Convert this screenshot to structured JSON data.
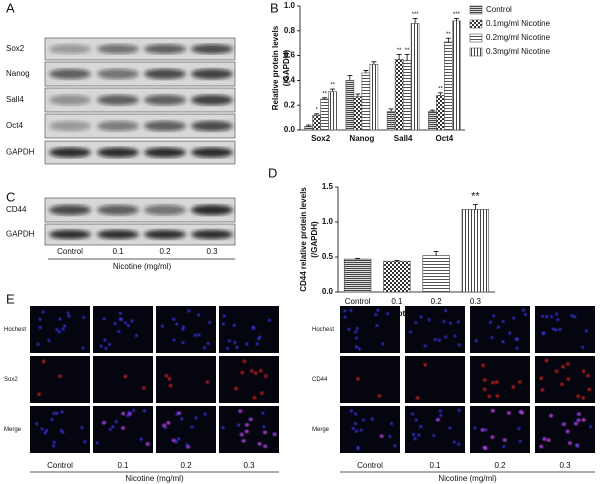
{
  "panel_labels": [
    "A",
    "B",
    "C",
    "D",
    "E"
  ],
  "blot_a": {
    "rows": [
      "Sox2",
      "Nanog",
      "Sall4",
      "Oct4",
      "GAPDH"
    ]
  },
  "blot_c": {
    "rows": [
      "CD44",
      "GAPDH"
    ],
    "lanes": [
      "Control",
      "0.1",
      "0.2",
      "0.3"
    ],
    "xlabel": "Nicotine (mg/ml)"
  },
  "chart_data": [
    {
      "type": "bar",
      "ylabel": [
        "Relative protein levels",
        "(/GAPDH)"
      ],
      "categories": [
        "Sox2",
        "Nanog",
        "Sall4",
        "Oct4"
      ],
      "series": [
        {
          "name": "Control",
          "color": "#555555",
          "pattern": "hlines",
          "values": [
            0.03,
            0.4,
            0.15,
            0.15
          ],
          "errors": [
            0.01,
            0.04,
            0.02,
            0.01
          ],
          "annotations": [
            null,
            null,
            null,
            null
          ]
        },
        {
          "name": "0.1mg/ml Nicotine",
          "color": "#555555",
          "pattern": "checker",
          "values": [
            0.12,
            0.27,
            0.57,
            0.28
          ],
          "errors": [
            0.01,
            0.02,
            0.04,
            0.02
          ],
          "annotations": [
            "*",
            null,
            "**",
            "**"
          ]
        },
        {
          "name": "0.2mg/ml Nicotine",
          "color": "#555555",
          "pattern": "hlines-light",
          "values": [
            0.25,
            0.46,
            0.56,
            0.71
          ],
          "errors": [
            0.01,
            0.02,
            0.05,
            0.03
          ],
          "annotations": [
            "**",
            null,
            "**",
            "**"
          ]
        },
        {
          "name": "0.3mg/ml Nicotine",
          "color": "#555555",
          "pattern": "vlines",
          "values": [
            0.31,
            0.53,
            0.86,
            0.88
          ],
          "errors": [
            0.02,
            0.02,
            0.04,
            0.02
          ],
          "annotations": [
            "**",
            null,
            "***",
            "***"
          ]
        }
      ],
      "ylim": [
        0,
        1.0
      ],
      "yticks": [
        {
          "value": 0,
          "label": "0.0"
        },
        0.2,
        0.4,
        0.6,
        0.8,
        {
          "value": 1.0,
          "label": "1.0"
        }
      ],
      "legend": "right"
    },
    {
      "type": "bar",
      "ylabel": [
        "CD44 relative protein levels",
        "(/GAPDH)"
      ],
      "xlabel": "Nicotine (mg/ml)",
      "categories": [
        "Control",
        "0.1",
        "0.2",
        "0.3"
      ],
      "values": [
        0.47,
        0.44,
        0.52,
        1.18
      ],
      "errors": [
        0.01,
        0.01,
        0.06,
        0.07
      ],
      "annotations": [
        null,
        null,
        null,
        "**"
      ],
      "patterns": [
        "hlines",
        "checker",
        "hlines-light",
        "vlines"
      ],
      "color": "#555555",
      "ylim": [
        0,
        1.5
      ],
      "yticks": [
        {
          "value": 0,
          "label": "0.0"
        },
        0.5,
        {
          "value": 1.0,
          "label": "1.0"
        },
        1.5
      ]
    }
  ],
  "images_e": [
    {
      "rows": [
        "Hochest",
        "Sox2",
        "Merge"
      ],
      "lanes": [
        "Control",
        "0.1",
        "0.2",
        "0.3"
      ],
      "xlabel": "Nicotine (mg/ml)"
    },
    {
      "rows": [
        "Hochest",
        "CD44",
        "Merge"
      ],
      "lanes": [
        "Control",
        "0.1",
        "0.2",
        "0.3"
      ],
      "xlabel": "Nicotine (mg/ml)"
    }
  ]
}
